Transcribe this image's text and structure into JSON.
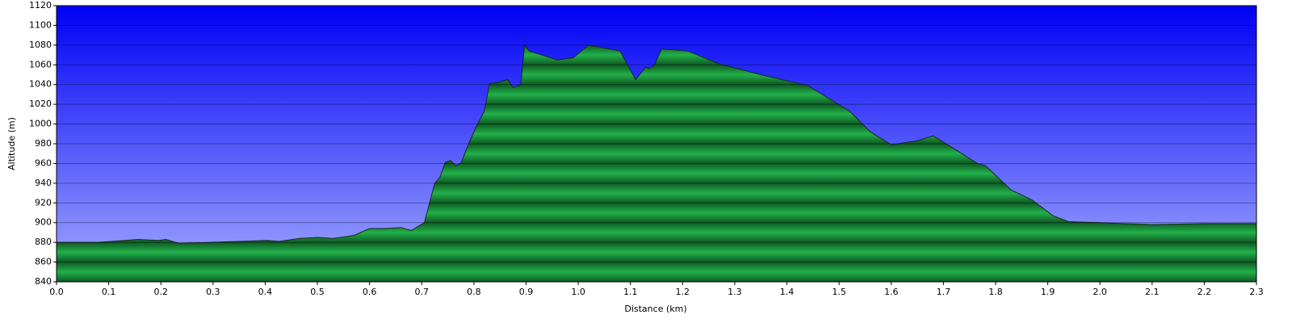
{
  "chart_data": {
    "type": "area",
    "x_label": "Distance    (km)",
    "y_label": "Altitude (m)",
    "x": [
      0,
      0.08,
      0.156,
      0.195,
      0.21,
      0.234,
      0.296,
      0.404,
      0.427,
      0.466,
      0.5,
      0.53,
      0.57,
      0.6,
      0.63,
      0.66,
      0.68,
      0.705,
      0.725,
      0.735,
      0.745,
      0.755,
      0.765,
      0.775,
      0.79,
      0.805,
      0.82,
      0.83,
      0.845,
      0.865,
      0.875,
      0.89,
      0.897,
      0.906,
      0.96,
      0.99,
      1.02,
      1.05,
      1.08,
      1.11,
      1.13,
      1.135,
      1.145,
      1.16,
      1.21,
      1.27,
      1.35,
      1.44,
      1.52,
      1.56,
      1.6,
      1.65,
      1.68,
      1.72,
      1.765,
      1.78,
      1.8,
      1.83,
      1.87,
      1.91,
      1.94,
      2.0,
      2.1,
      2.2,
      2.3
    ],
    "values": [
      880,
      880,
      883,
      882,
      883,
      879,
      880,
      882,
      881,
      884,
      885,
      884,
      887,
      894,
      894,
      895,
      892,
      900,
      940,
      946,
      961,
      963,
      958,
      960,
      980,
      998,
      1013,
      1041,
      1042,
      1045,
      1037,
      1040,
      1080,
      1074,
      1065,
      1067,
      1080,
      1077,
      1074,
      1045,
      1058,
      1056,
      1059,
      1076,
      1074,
      1061,
      1050,
      1039,
      1013,
      992,
      979,
      983,
      988,
      975,
      960,
      958,
      948,
      933,
      923,
      907,
      901,
      900,
      898,
      899,
      899
    ],
    "color": "#22b04a",
    "xlim": [
      0,
      2.3
    ],
    "xticks": [
      {
        "value": 0,
        "label": "0.0"
      },
      0.1,
      0.2,
      0.3,
      0.4,
      0.5,
      0.6,
      0.7,
      0.8,
      0.9,
      {
        "value": 1,
        "label": "1.0"
      },
      1.1,
      1.2,
      1.3,
      1.4,
      1.5,
      1.6,
      1.7,
      1.8,
      1.9,
      {
        "value": 2,
        "label": "2.0"
      },
      2.1,
      2.2,
      2.3
    ],
    "ylim": [
      840,
      1120
    ],
    "yticks": [
      840,
      860,
      880,
      900,
      920,
      940,
      960,
      980,
      1000,
      1020,
      1040,
      1060,
      1080,
      1100,
      1120
    ],
    "grid": true
  }
}
